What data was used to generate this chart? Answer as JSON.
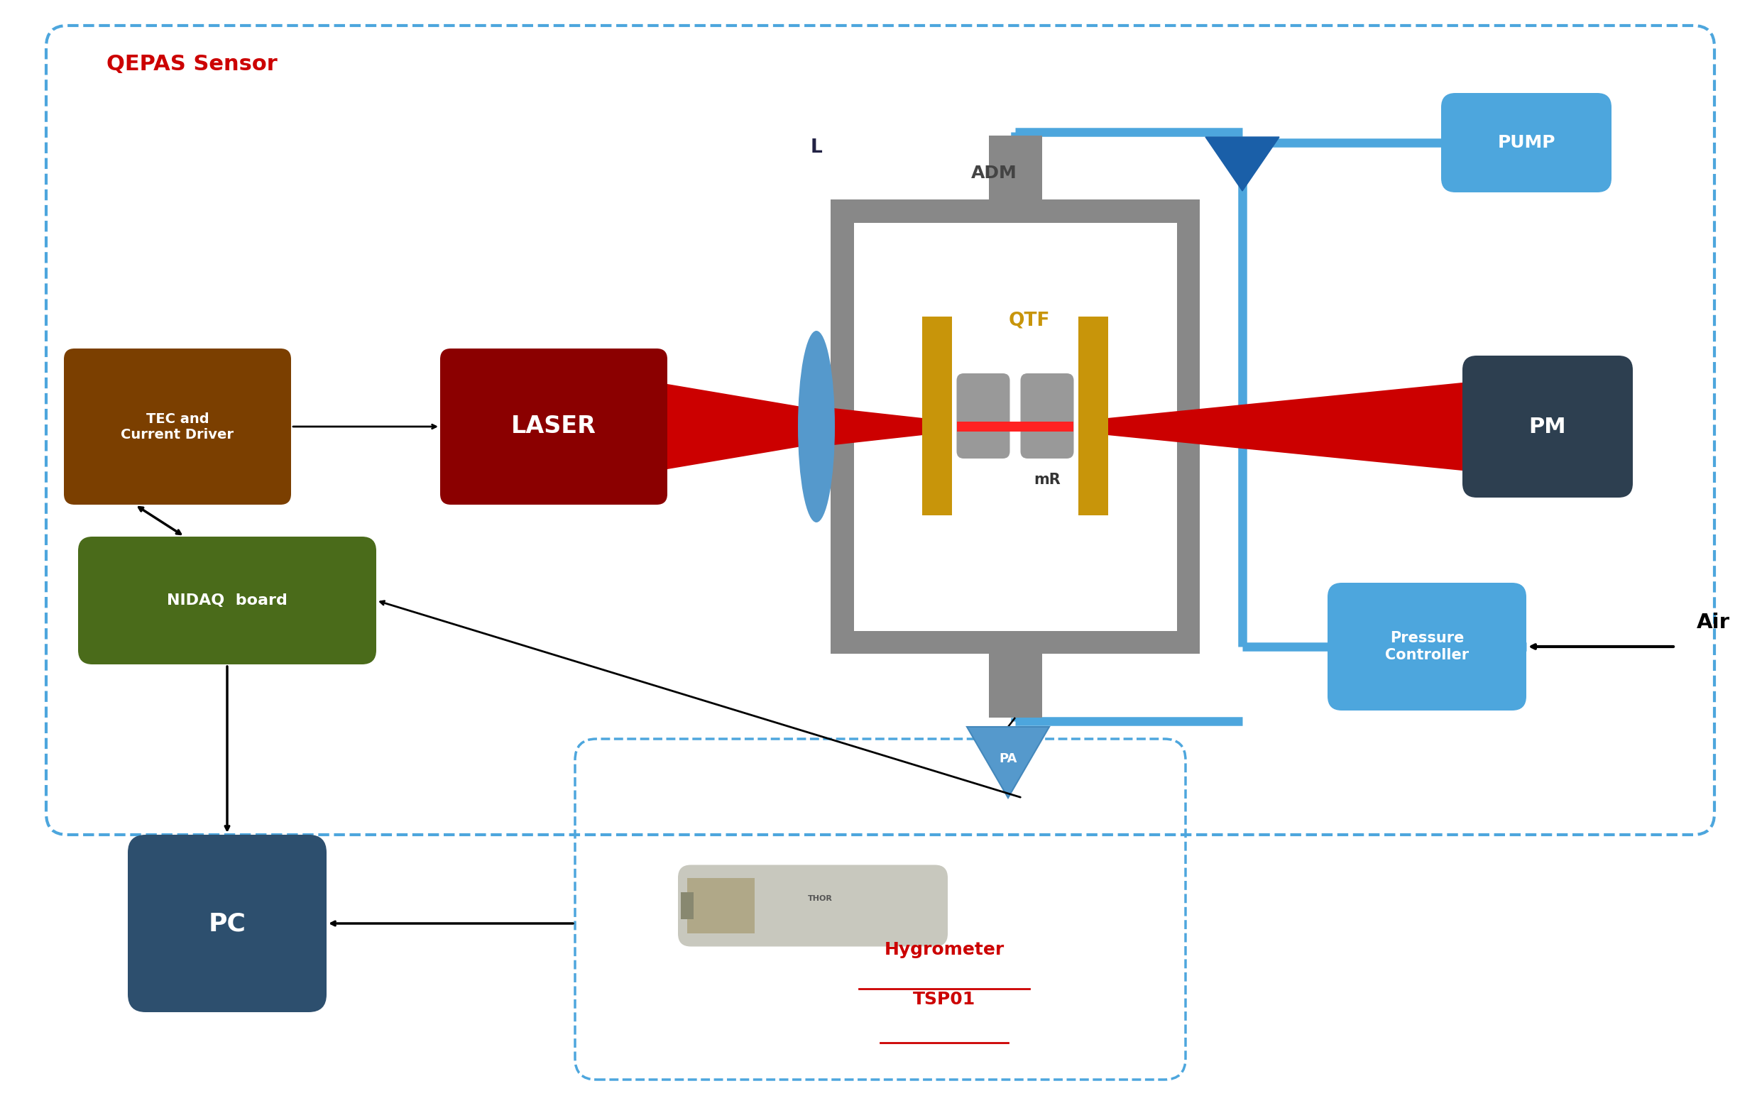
{
  "bg": "#ffffff",
  "sensor_label": "QEPAS Sensor",
  "sensor_label_color": "#cc0000",
  "c_sensor_box": "#4da6dd",
  "c_tec": "#7B3F00",
  "c_laser": "#8B0000",
  "c_nidaq": "#4a6b1a",
  "c_pc": "#2d4f6e",
  "c_pm": "#2d3f50",
  "c_pump": "#4da6dd",
  "c_pressure": "#4da6dd",
  "c_adm": "#888888",
  "c_gold": "#c8950a",
  "c_lens": "#5599cc",
  "c_beam": "#cc0000",
  "c_flow": "#4da6dd",
  "c_valve": "#1a5fa8",
  "c_pa": "#5599cc",
  "c_cyl": "#999999",
  "c_white": "#ffffff",
  "c_black": "#000000",
  "tec_label": "TEC and\nCurrent Driver",
  "laser_label": "LASER",
  "nidaq_label": "NIDAQ  board",
  "pc_label": "PC",
  "pm_label": "PM",
  "pump_label": "PUMP",
  "pressure_label": "Pressure\nController",
  "adm_label": "ADM",
  "qtf_label": "QTF",
  "mr_label": "mR",
  "pa_label": "PA",
  "l_label": "L",
  "air_label": "Air",
  "hygro_label1": "Hygrometer",
  "hygro_label2": "TSP01"
}
